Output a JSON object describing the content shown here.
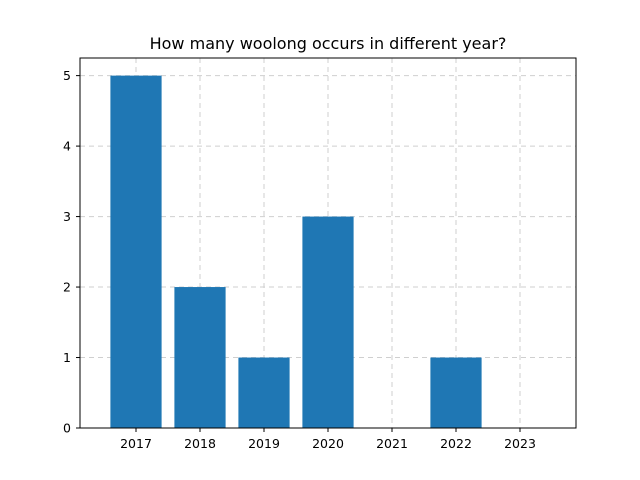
{
  "chart_data": {
    "type": "bar",
    "title": "How many woolong occurs in different year?",
    "xlabel": "",
    "ylabel": "",
    "categories": [
      "2017",
      "2018",
      "2019",
      "2020",
      "2021",
      "2022",
      "2023"
    ],
    "values": [
      5,
      2,
      1,
      3,
      0,
      1,
      0
    ],
    "ylim": [
      0,
      5.25
    ],
    "yticks": [
      0,
      1,
      2,
      3,
      4,
      5
    ],
    "grid": true,
    "bar_color": "#1f77b4"
  }
}
